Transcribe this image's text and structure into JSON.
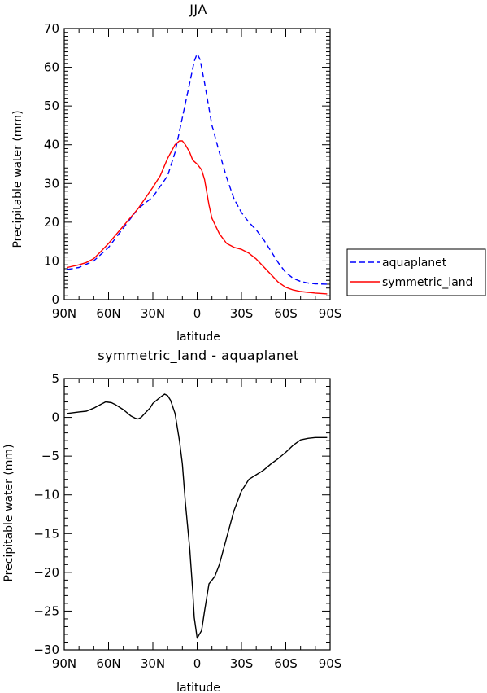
{
  "chart_data": [
    {
      "type": "line",
      "title": "JJA",
      "xlabel": "latitude",
      "ylabel": "Precipitable water (mm)",
      "xlim": [
        90,
        -90
      ],
      "ylim": [
        0,
        70
      ],
      "xticks": [
        {
          "v": 90,
          "label": "90N"
        },
        {
          "v": 60,
          "label": "60N"
        },
        {
          "v": 30,
          "label": "30N"
        },
        {
          "v": 0,
          "label": "0"
        },
        {
          "v": -30,
          "label": "30S"
        },
        {
          "v": -60,
          "label": "60S"
        },
        {
          "v": -90,
          "label": "90S"
        }
      ],
      "yticks": [
        0,
        10,
        20,
        30,
        40,
        50,
        60,
        70
      ],
      "legend": "right",
      "series": [
        {
          "name": "aquaplanet",
          "color": "#0000ff",
          "style": "dashed",
          "x": [
            88,
            80,
            70,
            60,
            50,
            40,
            30,
            20,
            15,
            10,
            5,
            2,
            0,
            -2,
            -5,
            -10,
            -15,
            -20,
            -25,
            -30,
            -35,
            -40,
            -45,
            -50,
            -55,
            -60,
            -65,
            -70,
            -75,
            -80,
            -88
          ],
          "y": [
            7.8,
            8.3,
            10.0,
            13.5,
            18.5,
            23.5,
            26.5,
            32.0,
            38.0,
            47.0,
            56.0,
            61.5,
            63.5,
            62.0,
            56.0,
            45.0,
            38.0,
            31.5,
            26.0,
            22.5,
            20.0,
            18.0,
            15.5,
            12.5,
            9.5,
            7.0,
            5.5,
            4.7,
            4.3,
            4.1,
            4.0
          ]
        },
        {
          "name": "symmetric_land",
          "color": "#ff0000",
          "style": "solid",
          "x": [
            88,
            80,
            75,
            70,
            65,
            60,
            50,
            40,
            30,
            25,
            20,
            15,
            12,
            10,
            8,
            5,
            3,
            0,
            -3,
            -5,
            -8,
            -10,
            -15,
            -20,
            -25,
            -30,
            -35,
            -40,
            -45,
            -50,
            -55,
            -60,
            -65,
            -70,
            -75,
            -80,
            -88
          ],
          "y": [
            8.3,
            9.0,
            9.6,
            10.6,
            12.5,
            14.5,
            19.0,
            23.5,
            29.0,
            32.0,
            36.5,
            40.0,
            41.0,
            41.0,
            40.0,
            38.0,
            36.0,
            35.0,
            33.5,
            31.0,
            24.5,
            21.0,
            17.0,
            14.5,
            13.5,
            13.0,
            12.0,
            10.5,
            8.5,
            6.5,
            4.5,
            3.2,
            2.5,
            2.1,
            1.9,
            1.7,
            1.5
          ]
        }
      ]
    },
    {
      "type": "line",
      "title": "symmetric_land - aquaplanet",
      "xlabel": "latitude",
      "ylabel": "Precipitable water (mm)",
      "xlim": [
        90,
        -90
      ],
      "ylim": [
        -30,
        5
      ],
      "xticks": [
        {
          "v": 90,
          "label": "90N"
        },
        {
          "v": 60,
          "label": "60N"
        },
        {
          "v": 30,
          "label": "30N"
        },
        {
          "v": 0,
          "label": "0"
        },
        {
          "v": -30,
          "label": "30S"
        },
        {
          "v": -60,
          "label": "60S"
        },
        {
          "v": -90,
          "label": "90S"
        }
      ],
      "yticks": [
        5,
        0,
        -5,
        -10,
        -15,
        -20,
        -25,
        -30
      ],
      "series": [
        {
          "color": "#000000",
          "style": "solid",
          "x": [
            88,
            80,
            75,
            70,
            65,
            62,
            58,
            55,
            50,
            45,
            42,
            40,
            38,
            35,
            32,
            30,
            25,
            22,
            20,
            18,
            15,
            12,
            10,
            8,
            5,
            3,
            2,
            0,
            -3,
            -5,
            -8,
            -10,
            -12,
            -15,
            -20,
            -25,
            -30,
            -35,
            -40,
            -45,
            -50,
            -55,
            -60,
            -65,
            -70,
            -75,
            -80,
            -88
          ],
          "y": [
            0.5,
            0.7,
            0.8,
            1.2,
            1.7,
            2.0,
            1.9,
            1.6,
            1.0,
            0.2,
            -0.1,
            -0.2,
            0.0,
            0.6,
            1.2,
            1.8,
            2.6,
            3.0,
            2.8,
            2.2,
            0.5,
            -3.0,
            -6.0,
            -11.0,
            -17.0,
            -22.5,
            -25.8,
            -28.5,
            -27.5,
            -25.0,
            -21.5,
            -21.0,
            -20.5,
            -19.0,
            -15.5,
            -12.0,
            -9.5,
            -8.0,
            -7.4,
            -6.8,
            -6.0,
            -5.3,
            -4.5,
            -3.6,
            -2.9,
            -2.7,
            -2.6,
            -2.6
          ]
        }
      ]
    }
  ]
}
